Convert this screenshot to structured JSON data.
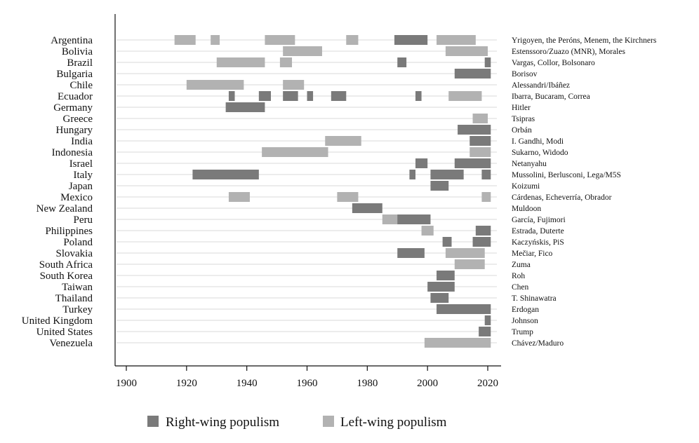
{
  "chart_data": {
    "type": "bar",
    "subtype": "horizontal-timeline",
    "title": "",
    "xlabel": "",
    "ylabel": "",
    "xlim": [
      1897,
      2025
    ],
    "xticks": [
      1900,
      1920,
      1940,
      1960,
      1980,
      2000,
      2020
    ],
    "grid": true,
    "legend": {
      "position": "bottom",
      "entries": [
        {
          "key": "right",
          "label": "Right-wing populism",
          "color": "#7a7a7a"
        },
        {
          "key": "left",
          "label": "Left-wing populism",
          "color": "#b2b2b2"
        }
      ]
    },
    "countries": [
      {
        "name": "Argentina",
        "leaders": "Yrigoyen, the Peróns, Menem, the Kirchners",
        "periods": [
          {
            "start": 1916,
            "end": 1922,
            "type": "left"
          },
          {
            "start": 1928,
            "end": 1930,
            "type": "left"
          },
          {
            "start": 1946,
            "end": 1955,
            "type": "left"
          },
          {
            "start": 1973,
            "end": 1976,
            "type": "left"
          },
          {
            "start": 1989,
            "end": 1999,
            "type": "right"
          },
          {
            "start": 2003,
            "end": 2015,
            "type": "left"
          }
        ]
      },
      {
        "name": "Bolivia",
        "leaders": "Estenssoro/Zuazo (MNR), Morales",
        "periods": [
          {
            "start": 1952,
            "end": 1964,
            "type": "left"
          },
          {
            "start": 2006,
            "end": 2019,
            "type": "left"
          }
        ]
      },
      {
        "name": "Brazil",
        "leaders": "Vargas, Collor, Bolsonaro",
        "periods": [
          {
            "start": 1930,
            "end": 1945,
            "type": "left"
          },
          {
            "start": 1951,
            "end": 1954,
            "type": "left"
          },
          {
            "start": 1990,
            "end": 1992,
            "type": "right"
          },
          {
            "start": 2019,
            "end": 2020,
            "type": "right"
          }
        ]
      },
      {
        "name": "Bulgaria",
        "leaders": "Borisov",
        "periods": [
          {
            "start": 2009,
            "end": 2020,
            "type": "right"
          }
        ]
      },
      {
        "name": "Chile",
        "leaders": "Alessandri/Ibáñez",
        "periods": [
          {
            "start": 1920,
            "end": 1938,
            "type": "left"
          },
          {
            "start": 1952,
            "end": 1958,
            "type": "left"
          }
        ]
      },
      {
        "name": "Ecuador",
        "leaders": "Ibarra, Bucaram, Correa",
        "periods": [
          {
            "start": 1934,
            "end": 1935,
            "type": "right"
          },
          {
            "start": 1944,
            "end": 1947,
            "type": "right"
          },
          {
            "start": 1952,
            "end": 1956,
            "type": "right"
          },
          {
            "start": 1960,
            "end": 1961,
            "type": "right"
          },
          {
            "start": 1968,
            "end": 1972,
            "type": "right"
          },
          {
            "start": 1996,
            "end": 1997,
            "type": "right"
          },
          {
            "start": 2007,
            "end": 2017,
            "type": "left"
          }
        ]
      },
      {
        "name": "Germany",
        "leaders": "Hitler",
        "periods": [
          {
            "start": 1933,
            "end": 1945,
            "type": "right"
          }
        ]
      },
      {
        "name": "Greece",
        "leaders": "Tsipras",
        "periods": [
          {
            "start": 2015,
            "end": 2019,
            "type": "left"
          }
        ]
      },
      {
        "name": "Hungary",
        "leaders": "Orbán",
        "periods": [
          {
            "start": 2010,
            "end": 2020,
            "type": "right"
          }
        ]
      },
      {
        "name": "India",
        "leaders": "I. Gandhi, Modi",
        "periods": [
          {
            "start": 1966,
            "end": 1977,
            "type": "left"
          },
          {
            "start": 2014,
            "end": 2020,
            "type": "right"
          }
        ]
      },
      {
        "name": "Indonesia",
        "leaders": "Sukarno, Widodo",
        "periods": [
          {
            "start": 1945,
            "end": 1966,
            "type": "left"
          },
          {
            "start": 2014,
            "end": 2020,
            "type": "left"
          }
        ]
      },
      {
        "name": "Israel",
        "leaders": "Netanyahu",
        "periods": [
          {
            "start": 1996,
            "end": 1999,
            "type": "right"
          },
          {
            "start": 2009,
            "end": 2020,
            "type": "right"
          }
        ]
      },
      {
        "name": "Italy",
        "leaders": "Mussolini, Berlusconi, Lega/M5S",
        "periods": [
          {
            "start": 1922,
            "end": 1943,
            "type": "right"
          },
          {
            "start": 1994,
            "end": 1995,
            "type": "right"
          },
          {
            "start": 2001,
            "end": 2011,
            "type": "right"
          },
          {
            "start": 2018,
            "end": 2020,
            "type": "right"
          }
        ]
      },
      {
        "name": "Japan",
        "leaders": "Koizumi",
        "periods": [
          {
            "start": 2001,
            "end": 2006,
            "type": "right"
          }
        ]
      },
      {
        "name": "Mexico",
        "leaders": "Cárdenas, Echeverría, Obrador",
        "periods": [
          {
            "start": 1934,
            "end": 1940,
            "type": "left"
          },
          {
            "start": 1970,
            "end": 1976,
            "type": "left"
          },
          {
            "start": 2018,
            "end": 2020,
            "type": "left"
          }
        ]
      },
      {
        "name": "New Zealand",
        "leaders": "Muldoon",
        "periods": [
          {
            "start": 1975,
            "end": 1984,
            "type": "right"
          }
        ]
      },
      {
        "name": "Peru",
        "leaders": "García, Fujimori",
        "periods": [
          {
            "start": 1985,
            "end": 1990,
            "type": "left"
          },
          {
            "start": 1990,
            "end": 2000,
            "type": "right"
          }
        ]
      },
      {
        "name": "Philippines",
        "leaders": "Estrada, Duterte",
        "periods": [
          {
            "start": 1998,
            "end": 2001,
            "type": "left"
          },
          {
            "start": 2016,
            "end": 2020,
            "type": "right"
          }
        ]
      },
      {
        "name": "Poland",
        "leaders": "Kaczyńskis, PiS",
        "periods": [
          {
            "start": 2005,
            "end": 2007,
            "type": "right"
          },
          {
            "start": 2015,
            "end": 2020,
            "type": "right"
          }
        ]
      },
      {
        "name": "Slovakia",
        "leaders": "Mečiar, Fico",
        "periods": [
          {
            "start": 1990,
            "end": 1998,
            "type": "right"
          },
          {
            "start": 2006,
            "end": 2018,
            "type": "left"
          }
        ]
      },
      {
        "name": "South Africa",
        "leaders": "Zuma",
        "periods": [
          {
            "start": 2009,
            "end": 2018,
            "type": "left"
          }
        ]
      },
      {
        "name": "South Korea",
        "leaders": "Roh",
        "periods": [
          {
            "start": 2003,
            "end": 2008,
            "type": "right"
          }
        ]
      },
      {
        "name": "Taiwan",
        "leaders": "Chen",
        "periods": [
          {
            "start": 2000,
            "end": 2008,
            "type": "right"
          }
        ]
      },
      {
        "name": "Thailand",
        "leaders": "T. Shinawatra",
        "periods": [
          {
            "start": 2001,
            "end": 2006,
            "type": "right"
          }
        ]
      },
      {
        "name": "Turkey",
        "leaders": "Erdogan",
        "periods": [
          {
            "start": 2003,
            "end": 2020,
            "type": "right"
          }
        ]
      },
      {
        "name": "United Kingdom",
        "leaders": "Johnson",
        "periods": [
          {
            "start": 2019,
            "end": 2020,
            "type": "right"
          }
        ]
      },
      {
        "name": "United States",
        "leaders": "Trump",
        "periods": [
          {
            "start": 2017,
            "end": 2020,
            "type": "right"
          }
        ]
      },
      {
        "name": "Venezuela",
        "leaders": "Chávez/Maduro",
        "periods": [
          {
            "start": 1999,
            "end": 2020,
            "type": "left"
          }
        ]
      }
    ]
  }
}
